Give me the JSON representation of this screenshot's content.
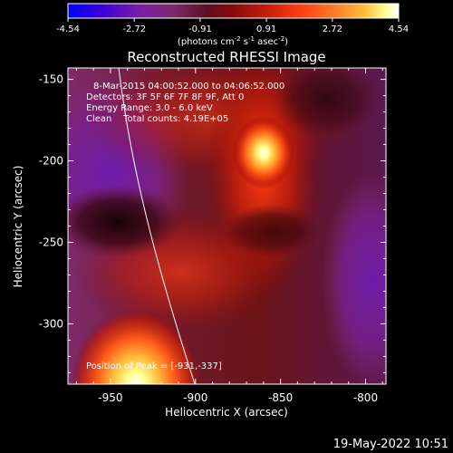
{
  "colors": {
    "background": "#000000",
    "foreground": "#ffffff",
    "colormap": [
      "#0000ff",
      "#3b00d8",
      "#7a1fa0",
      "#7d2a6a",
      "#5a1020",
      "#8a0a0a",
      "#c41e0a",
      "#ff3c14",
      "#ff7828",
      "#ffbe3c",
      "#ffff96",
      "#ffffff"
    ]
  },
  "colorbar": {
    "ticks": [
      "-4.54",
      "-2.72",
      "-0.91",
      "0.91",
      "2.72",
      "4.54"
    ],
    "unit_parts": {
      "open": "(photons cm",
      "exp1": "-2",
      "mid": " s",
      "exp2": "-1",
      "mid2": " asec",
      "exp3": "-2",
      "close": ")"
    },
    "range": [
      -4.54,
      4.54
    ]
  },
  "chart_data": {
    "type": "heatmap",
    "title": "Reconstructed RHESSI Image",
    "xlabel": "Heliocentric X (arcsec)",
    "ylabel": "Heliocentric Y (arcsec)",
    "xlim": [
      -975,
      -788
    ],
    "ylim": [
      -337,
      -143
    ],
    "x_ticks": [
      "-950",
      "-900",
      "-850",
      "-800"
    ],
    "y_ticks": [
      "-150",
      "-200",
      "-250",
      "-300"
    ],
    "annotations": [
      "8-Mar-2015 04:00:52.000 to 04:06:52.000",
      "Detectors: 3F 5F 6F 7F 8F 9F, Att 0",
      "Energy Range: 3.0 - 6.0 keV",
      "Clean    Total counts: 4.19E+05"
    ],
    "peak_label": "Position of Peak = [-931,-337]",
    "sources": [
      {
        "x": -860,
        "y": -195,
        "level": 1.0
      },
      {
        "x": -935,
        "y": -337,
        "level": 1.0
      }
    ],
    "limb": true
  },
  "footer": {
    "timestamp": "19-May-2022 10:51"
  }
}
